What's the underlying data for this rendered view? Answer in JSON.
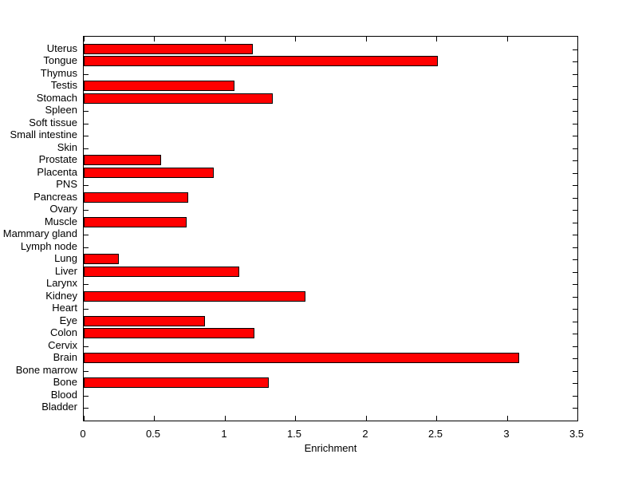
{
  "chart_data": {
    "type": "bar",
    "orientation": "horizontal",
    "title": "",
    "xlabel": "Enrichment",
    "ylabel": "",
    "xlim": [
      0,
      3.5
    ],
    "xticks": [
      0,
      0.5,
      1,
      1.5,
      2,
      2.5,
      3,
      3.5
    ],
    "xtick_labels": [
      "0",
      "0.5",
      "1",
      "1.5",
      "2",
      "2.5",
      "3",
      "3.5"
    ],
    "grid": false,
    "legend": null,
    "bar_color": "#ff0000",
    "bar_edge_color": "#000000",
    "axes_color": "#000000",
    "background_color": "#ffffff",
    "categories": [
      "Uterus",
      "Tongue",
      "Thymus",
      "Testis",
      "Stomach",
      "Spleen",
      "Soft tissue",
      "Small intestine",
      "Skin",
      "Prostate",
      "Placenta",
      "PNS",
      "Pancreas",
      "Ovary",
      "Muscle",
      "Mammary gland",
      "Lymph node",
      "Lung",
      "Liver",
      "Larynx",
      "Kidney",
      "Heart",
      "Eye",
      "Colon",
      "Cervix",
      "Brain",
      "Bone marrow",
      "Bone",
      "Blood",
      "Bladder"
    ],
    "values": [
      1.2,
      2.51,
      0,
      1.07,
      1.34,
      0,
      0,
      0,
      0,
      0.55,
      0.92,
      0,
      0.74,
      0,
      0.73,
      0,
      0,
      0.25,
      1.1,
      0,
      1.57,
      0,
      0.86,
      1.21,
      0,
      3.09,
      0,
      1.31,
      0,
      0
    ]
  }
}
